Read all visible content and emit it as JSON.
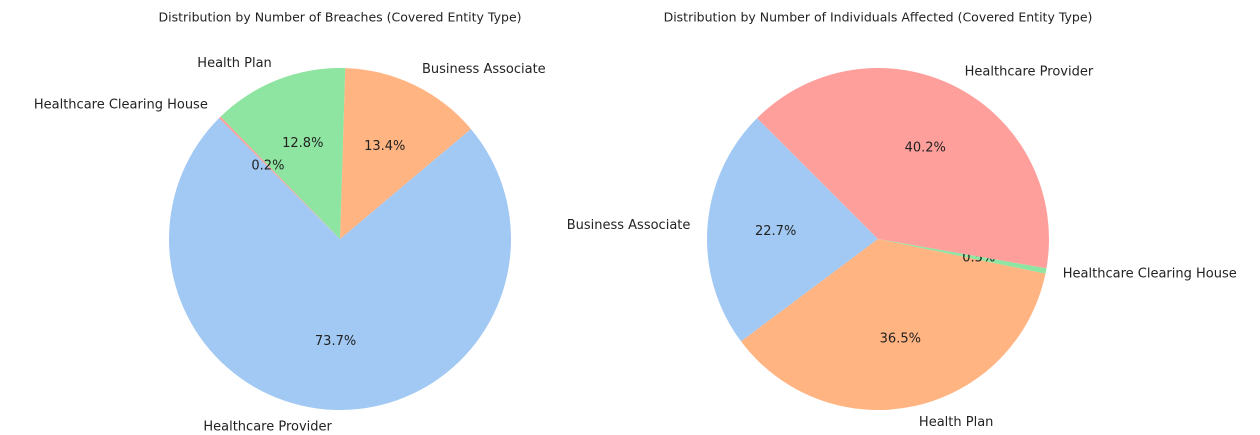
{
  "chart_data": [
    {
      "type": "pie",
      "title": "Distribution by Number of Breaches (Covered Entity Type)",
      "categories": [
        "Healthcare Provider",
        "Business Associate",
        "Health Plan",
        "Healthcare Clearing House"
      ],
      "values": [
        73.7,
        13.4,
        12.8,
        0.2
      ],
      "value_labels": [
        "73.7%",
        "13.4%",
        "12.8%",
        "0.2%"
      ],
      "colors": [
        "#a1c9f4",
        "#ffb482",
        "#8de5a1",
        "#ff9f9b"
      ]
    },
    {
      "type": "pie",
      "title": "Distribution by Number of Individuals Affected (Covered Entity Type)",
      "categories": [
        "Business Associate",
        "Health Plan",
        "Healthcare Clearing House",
        "Healthcare Provider"
      ],
      "values": [
        22.7,
        36.5,
        0.5,
        40.2
      ],
      "value_labels": [
        "22.7%",
        "36.5%",
        "0.5%",
        "40.2%"
      ],
      "colors": [
        "#a1c9f4",
        "#ffb482",
        "#8de5a1",
        "#ff9f9b"
      ]
    }
  ]
}
